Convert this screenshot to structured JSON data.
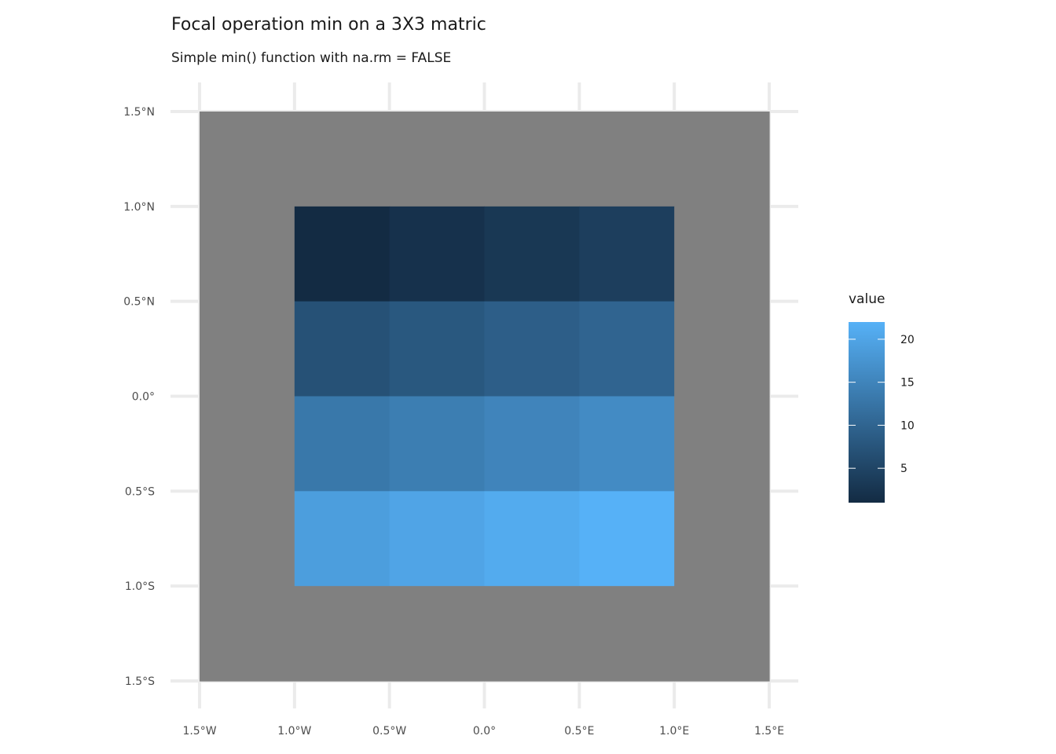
{
  "chart_data": {
    "type": "heatmap",
    "title": "Focal operation min on a 3X3 matric",
    "subtitle": "Simple min() function with na.rm = FALSE",
    "xlabel": "",
    "ylabel": "",
    "xlim": [
      -1.5,
      1.5
    ],
    "ylim": [
      -1.5,
      1.5
    ],
    "x_ticks": [
      -1.5,
      -1.0,
      -0.5,
      0.0,
      0.5,
      1.0,
      1.5
    ],
    "y_ticks": [
      -1.5,
      -1.0,
      -0.5,
      0.0,
      0.5,
      1.0,
      1.5
    ],
    "x_tick_labels": [
      "1.5°W",
      "1.0°W",
      "0.5°W",
      "0.0°",
      "0.5°E",
      "1.0°E",
      "1.5°E"
    ],
    "y_tick_labels": [
      "1.5°S",
      "1.0°S",
      "0.5°S",
      "0.0°",
      "0.5°N",
      "1.0°N",
      "1.5°N"
    ],
    "grid": true,
    "na_color": "#808080",
    "cell_size": 0.5,
    "cells": [
      {
        "x": -1.25,
        "y": 1.25,
        "value": null
      },
      {
        "x": -0.75,
        "y": 1.25,
        "value": null
      },
      {
        "x": -0.25,
        "y": 1.25,
        "value": null
      },
      {
        "x": 0.25,
        "y": 1.25,
        "value": null
      },
      {
        "x": 0.75,
        "y": 1.25,
        "value": null
      },
      {
        "x": 1.25,
        "y": 1.25,
        "value": null
      },
      {
        "x": -1.25,
        "y": 0.75,
        "value": null
      },
      {
        "x": -0.75,
        "y": 0.75,
        "value": 1
      },
      {
        "x": -0.25,
        "y": 0.75,
        "value": 2
      },
      {
        "x": 0.25,
        "y": 0.75,
        "value": 3
      },
      {
        "x": 0.75,
        "y": 0.75,
        "value": 4
      },
      {
        "x": 1.25,
        "y": 0.75,
        "value": null
      },
      {
        "x": -1.25,
        "y": 0.25,
        "value": null
      },
      {
        "x": -0.75,
        "y": 0.25,
        "value": 7
      },
      {
        "x": -0.25,
        "y": 0.25,
        "value": 8
      },
      {
        "x": 0.25,
        "y": 0.25,
        "value": 9
      },
      {
        "x": 0.75,
        "y": 0.25,
        "value": 10
      },
      {
        "x": 1.25,
        "y": 0.25,
        "value": null
      },
      {
        "x": -1.25,
        "y": -0.25,
        "value": null
      },
      {
        "x": -0.75,
        "y": -0.25,
        "value": 13
      },
      {
        "x": -0.25,
        "y": -0.25,
        "value": 14
      },
      {
        "x": 0.25,
        "y": -0.25,
        "value": 15
      },
      {
        "x": 0.75,
        "y": -0.25,
        "value": 16
      },
      {
        "x": 1.25,
        "y": -0.25,
        "value": null
      },
      {
        "x": -1.25,
        "y": -0.75,
        "value": null
      },
      {
        "x": -0.75,
        "y": -0.75,
        "value": 19
      },
      {
        "x": -0.25,
        "y": -0.75,
        "value": 20
      },
      {
        "x": 0.25,
        "y": -0.75,
        "value": 21
      },
      {
        "x": 0.75,
        "y": -0.75,
        "value": 22
      },
      {
        "x": 1.25,
        "y": -0.75,
        "value": null
      },
      {
        "x": -1.25,
        "y": -1.25,
        "value": null
      },
      {
        "x": -0.75,
        "y": -1.25,
        "value": null
      },
      {
        "x": -0.25,
        "y": -1.25,
        "value": null
      },
      {
        "x": 0.25,
        "y": -1.25,
        "value": null
      },
      {
        "x": 0.75,
        "y": -1.25,
        "value": null
      },
      {
        "x": 1.25,
        "y": -1.25,
        "value": null
      }
    ],
    "legend": {
      "title": "value",
      "position": "right",
      "min": 1,
      "max": 22,
      "breaks": [
        5,
        10,
        15,
        20
      ],
      "break_labels": [
        "5",
        "10",
        "15",
        "20"
      ],
      "low_color": "#132B43",
      "high_color": "#56B1F7"
    }
  }
}
